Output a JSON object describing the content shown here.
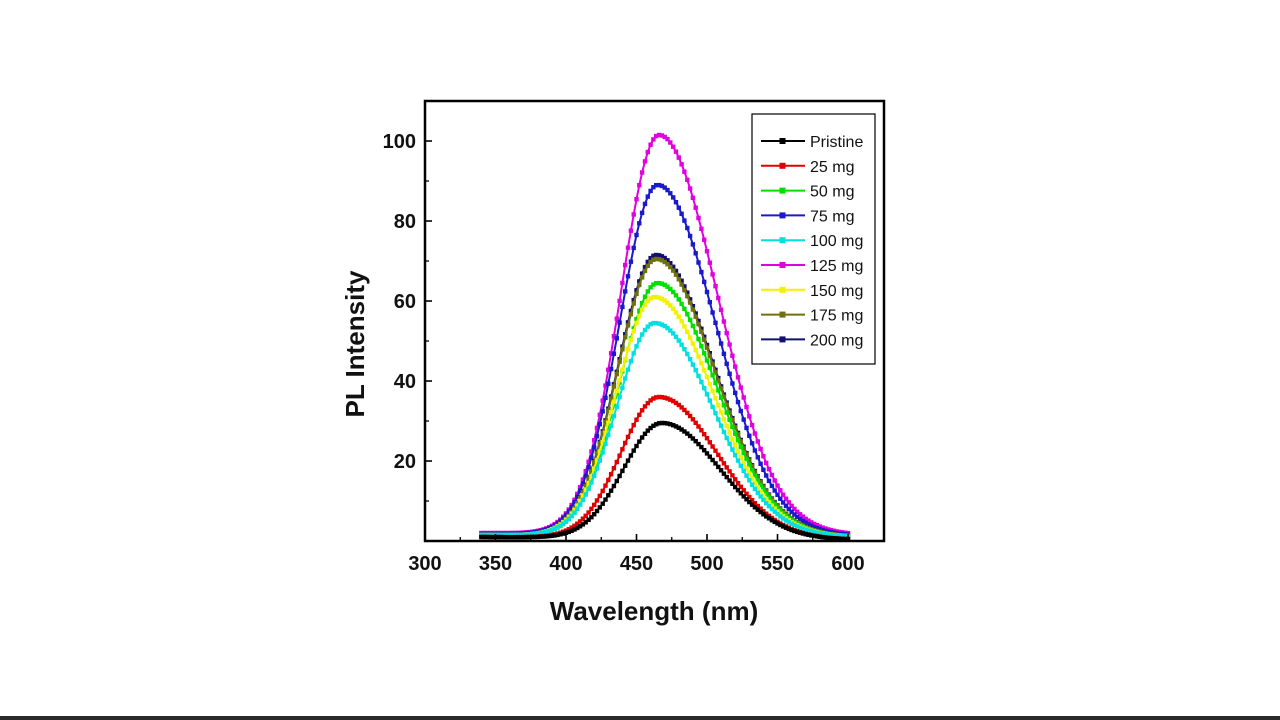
{
  "chart_data": {
    "type": "line",
    "xlabel": "Wavelength (nm)",
    "ylabel": "PL Intensity",
    "xlim": [
      300,
      610
    ],
    "ylim": [
      0,
      110
    ],
    "xticks": [
      300,
      350,
      400,
      450,
      500,
      550,
      600
    ],
    "yticks": [
      20,
      40,
      60,
      80,
      100
    ],
    "legend_position": "top-right",
    "grid": false,
    "x_start": 340,
    "x_end": 600,
    "series": [
      {
        "name": "Pristine",
        "color": "#000000",
        "peak_x": 468,
        "peak_y": 29.5,
        "baseline_start": 1.0,
        "baseline_end": 0.3
      },
      {
        "name": "25 mg",
        "color": "#e00000",
        "peak_x": 466,
        "peak_y": 36,
        "baseline_start": 1.0,
        "baseline_end": 0.3
      },
      {
        "name": "50 mg",
        "color": "#00e000",
        "peak_x": 465,
        "peak_y": 64.5,
        "baseline_start": 1.5,
        "baseline_end": 0.8
      },
      {
        "name": "75 mg",
        "color": "#1a1acc",
        "peak_x": 465,
        "peak_y": 89,
        "baseline_start": 1.8,
        "baseline_end": 1.2
      },
      {
        "name": "100 mg",
        "color": "#00e0e0",
        "peak_x": 463,
        "peak_y": 54.5,
        "baseline_start": 1.5,
        "baseline_end": 1.0
      },
      {
        "name": "125 mg",
        "color": "#e000e0",
        "peak_x": 466,
        "peak_y": 101.5,
        "baseline_start": 2.0,
        "baseline_end": 1.5
      },
      {
        "name": "150 mg",
        "color": "#f2f200",
        "peak_x": 463,
        "peak_y": 61,
        "baseline_start": 1.5,
        "baseline_end": 1.0
      },
      {
        "name": "175 mg",
        "color": "#707010",
        "peak_x": 464,
        "peak_y": 70.5,
        "baseline_start": 1.5,
        "baseline_end": 1.0
      },
      {
        "name": "200 mg",
        "color": "#10106e",
        "peak_x": 464,
        "peak_y": 71.5,
        "baseline_start": 1.5,
        "baseline_end": 1.0
      }
    ]
  }
}
